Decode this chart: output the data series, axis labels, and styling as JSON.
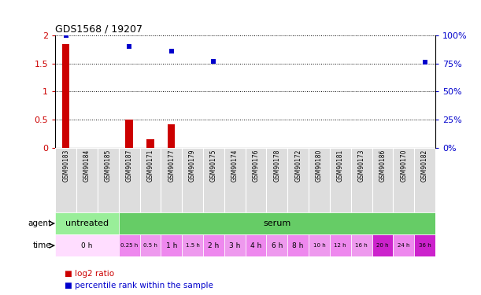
{
  "title": "GDS1568 / 19207",
  "samples": [
    "GSM90183",
    "GSM90184",
    "GSM90185",
    "GSM90187",
    "GSM90171",
    "GSM90177",
    "GSM90179",
    "GSM90175",
    "GSM90174",
    "GSM90176",
    "GSM90178",
    "GSM90172",
    "GSM90180",
    "GSM90181",
    "GSM90173",
    "GSM90186",
    "GSM90170",
    "GSM90182"
  ],
  "log2_ratio": [
    1.84,
    0.0,
    0.0,
    0.5,
    0.15,
    0.42,
    0.0,
    0.0,
    0.0,
    0.0,
    0.0,
    0.0,
    0.0,
    0.0,
    0.0,
    0.0,
    0.0,
    0.0
  ],
  "percentile_rank_values": [
    100.0,
    -1,
    -1,
    90.0,
    -1,
    86.0,
    -1,
    77.0,
    -1,
    -1,
    -1,
    -1,
    -1,
    -1,
    -1,
    -1,
    -1,
    76.0
  ],
  "bar_color_red": "#cc0000",
  "bar_color_blue": "#0000cc",
  "ylim_left": [
    0,
    2
  ],
  "ylim_right": [
    0,
    100
  ],
  "yticks_left": [
    0,
    0.5,
    1.0,
    1.5,
    2.0
  ],
  "yticks_right": [
    0,
    25,
    50,
    75,
    100
  ],
  "ytick_labels_left": [
    "0",
    "0.5",
    "1",
    "1.5",
    "2"
  ],
  "ytick_labels_right": [
    "0%",
    "25%",
    "50%",
    "75%",
    "100%"
  ],
  "agent_groups": [
    {
      "label": "untreated",
      "start": 0,
      "end": 3,
      "color": "#99ee99"
    },
    {
      "label": "serum",
      "start": 3,
      "end": 18,
      "color": "#66cc66"
    }
  ],
  "time_groups": [
    {
      "label": "0 h",
      "start": 0,
      "end": 3,
      "color": "#ffddff"
    },
    {
      "label": "0.25 h",
      "start": 3,
      "end": 4,
      "color": "#ee88ee"
    },
    {
      "label": "0.5 h",
      "start": 4,
      "end": 5,
      "color": "#ee99ee"
    },
    {
      "label": "1 h",
      "start": 5,
      "end": 6,
      "color": "#ee88ee"
    },
    {
      "label": "1.5 h",
      "start": 6,
      "end": 7,
      "color": "#ee99ee"
    },
    {
      "label": "2 h",
      "start": 7,
      "end": 8,
      "color": "#ee88ee"
    },
    {
      "label": "3 h",
      "start": 8,
      "end": 9,
      "color": "#ee99ee"
    },
    {
      "label": "4 h",
      "start": 9,
      "end": 10,
      "color": "#ee88ee"
    },
    {
      "label": "6 h",
      "start": 10,
      "end": 11,
      "color": "#ee99ee"
    },
    {
      "label": "8 h",
      "start": 11,
      "end": 12,
      "color": "#ee88ee"
    },
    {
      "label": "10 h",
      "start": 12,
      "end": 13,
      "color": "#ee99ee"
    },
    {
      "label": "12 h",
      "start": 13,
      "end": 14,
      "color": "#ee88ee"
    },
    {
      "label": "16 h",
      "start": 14,
      "end": 15,
      "color": "#ee99ee"
    },
    {
      "label": "20 h",
      "start": 15,
      "end": 16,
      "color": "#cc22cc"
    },
    {
      "label": "24 h",
      "start": 16,
      "end": 17,
      "color": "#ee88ee"
    },
    {
      "label": "36 h",
      "start": 17,
      "end": 18,
      "color": "#cc22cc"
    }
  ],
  "legend_items": [
    {
      "label": "log2 ratio",
      "color": "#cc0000"
    },
    {
      "label": "percentile rank within the sample",
      "color": "#0000cc"
    }
  ],
  "dotted_line_color": "#000000",
  "bg_color": "#ffffff",
  "axis_label_color_left": "#cc0000",
  "axis_label_color_right": "#0000cc",
  "sample_bg_color": "#dddddd",
  "sample_border_color": "#ffffff"
}
